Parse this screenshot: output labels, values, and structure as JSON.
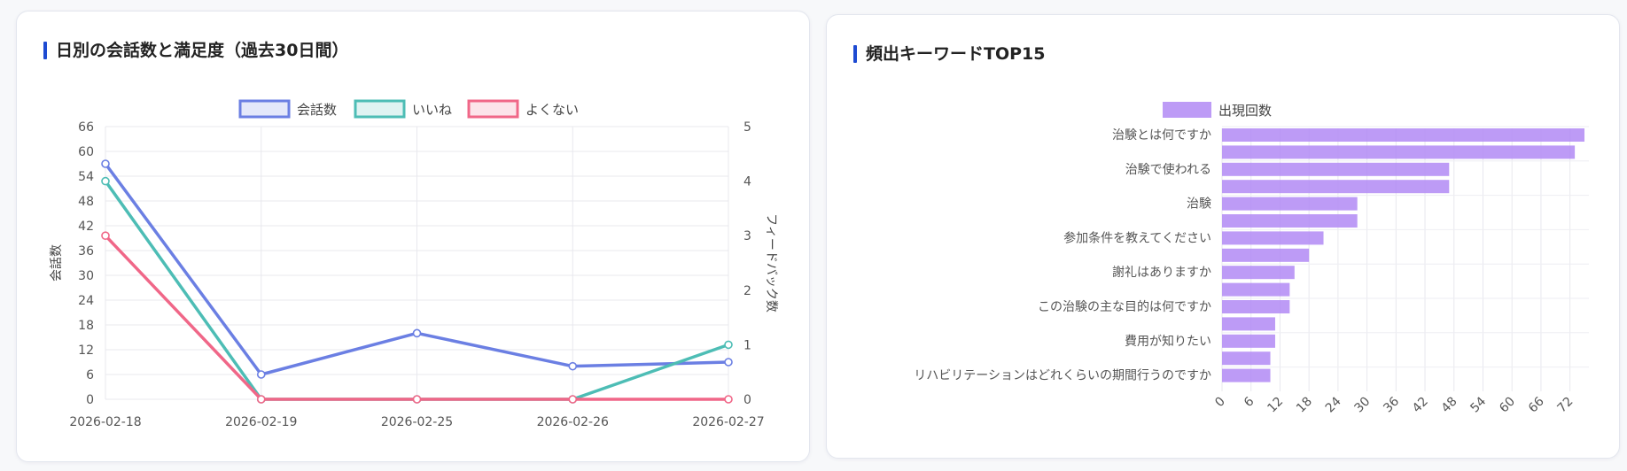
{
  "colors": {
    "conversations": "#6b7fe3",
    "likes": "#4dbdb5",
    "dislikes": "#f06788",
    "keywords": "#b28af5",
    "title_accent": "#1e4bd2"
  },
  "left_card": {
    "title": "日別の会話数と満足度（過去30日間）"
  },
  "right_card": {
    "title": "頻出キーワードTOP15"
  },
  "chart_data": [
    {
      "type": "line",
      "title": "日別の会話数と満足度（過去30日間）",
      "x": [
        "2026-02-18",
        "2026-02-19",
        "2026-02-25",
        "2026-02-26",
        "2026-02-27"
      ],
      "series": [
        {
          "name": "会話数",
          "axis": "left",
          "values": [
            57,
            6,
            16,
            8,
            9
          ]
        },
        {
          "name": "いいね",
          "axis": "right",
          "values": [
            4,
            0,
            0,
            0,
            1
          ]
        },
        {
          "name": "よくない",
          "axis": "right",
          "values": [
            3,
            0,
            0,
            0,
            0
          ]
        }
      ],
      "ylabel": "会話数",
      "ylabel_right": "フィードバック数",
      "ylim": [
        0,
        66
      ],
      "yticks": [
        "66",
        "60",
        "54",
        "48",
        "42",
        "36",
        "30",
        "24",
        "18",
        "12",
        "6",
        "0"
      ],
      "ylim_right": [
        0,
        5
      ],
      "yticks_right": [
        "5",
        "4",
        "3",
        "2",
        "1",
        "0"
      ],
      "legend": "top-center",
      "grid": true
    },
    {
      "type": "bar",
      "orientation": "horizontal",
      "title": "頻出キーワードTOP15",
      "series": [
        {
          "name": "出現回数"
        }
      ],
      "categories": [
        "治験とは何ですか",
        "",
        "治験で使われる",
        "",
        "治験",
        "",
        "参加条件を教えてください",
        "",
        "謝礼はありますか",
        "",
        "この治験の主な目的は何ですか",
        "",
        "費用が知りたい",
        "",
        "リハビリテーションはどれくらいの期間行うのですか"
      ],
      "values": [
        75,
        73,
        47,
        47,
        28,
        28,
        21,
        18,
        15,
        14,
        14,
        11,
        11,
        10,
        10
      ],
      "xlim": [
        0,
        75
      ],
      "xticks": [
        "0",
        "6",
        "12",
        "18",
        "24",
        "30",
        "36",
        "42",
        "48",
        "54",
        "60",
        "66",
        "72"
      ],
      "legend": "top-center",
      "grid": true
    }
  ]
}
